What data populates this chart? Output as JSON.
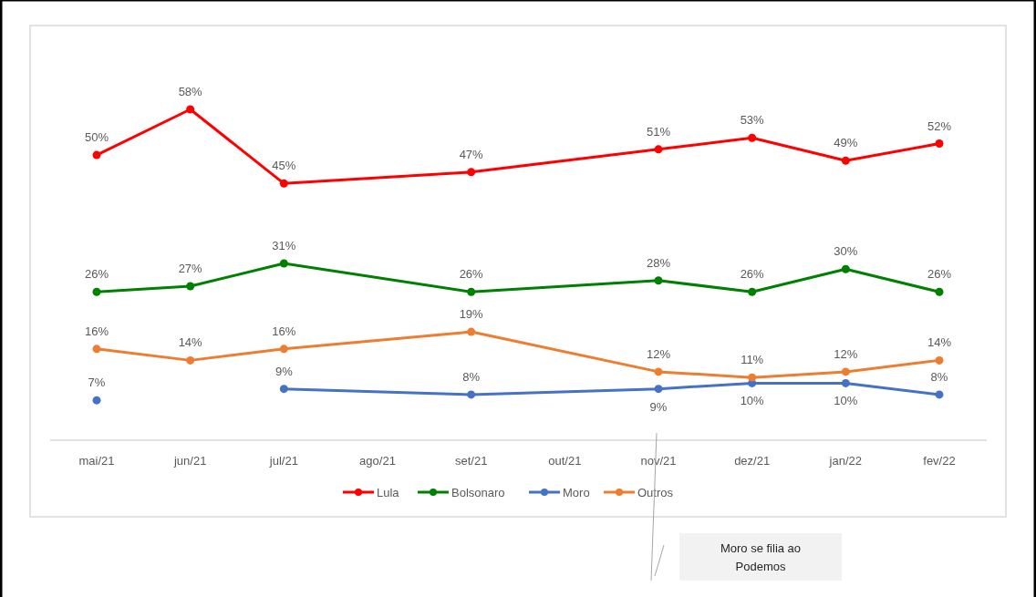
{
  "chart_data": {
    "type": "line",
    "categories": [
      "mai/21",
      "jun/21",
      "jul/21",
      "ago/21",
      "set/21",
      "out/21",
      "nov/21",
      "dez/21",
      "jan/22",
      "fev/22"
    ],
    "series": [
      {
        "name": "Lula",
        "color": "#ff0000",
        "values": [
          50,
          58,
          45,
          null,
          47,
          null,
          51,
          53,
          49,
          52
        ],
        "value_labels": [
          "50%",
          "58%",
          "45%",
          null,
          "47%",
          null,
          "51%",
          "53%",
          "49%",
          "52%"
        ]
      },
      {
        "name": "Bolsonaro",
        "color": "#008000",
        "values": [
          26,
          27,
          31,
          null,
          26,
          null,
          28,
          26,
          30,
          26
        ],
        "value_labels": [
          "26%",
          "27%",
          "31%",
          null,
          "26%",
          null,
          "28%",
          "26%",
          "30%",
          "26%"
        ]
      },
      {
        "name": "Moro",
        "color": "#4472c4",
        "values": [
          7,
          null,
          9,
          null,
          8,
          null,
          9,
          10,
          10,
          8
        ],
        "value_labels": [
          "7%",
          null,
          "9%",
          null,
          "8%",
          null,
          "9%",
          "10%",
          "10%",
          "8%"
        ]
      },
      {
        "name": "Outros",
        "color": "#ed7d31",
        "values": [
          16,
          14,
          16,
          null,
          19,
          null,
          12,
          11,
          12,
          14
        ],
        "value_labels": [
          "16%",
          "14%",
          "16%",
          null,
          "19%",
          null,
          "12%",
          "11%",
          "12%",
          "14%"
        ]
      }
    ],
    "marker": "circle",
    "legend": "bottom",
    "grid": false,
    "annotations": [
      "Moro se filia ao Podemos"
    ]
  }
}
